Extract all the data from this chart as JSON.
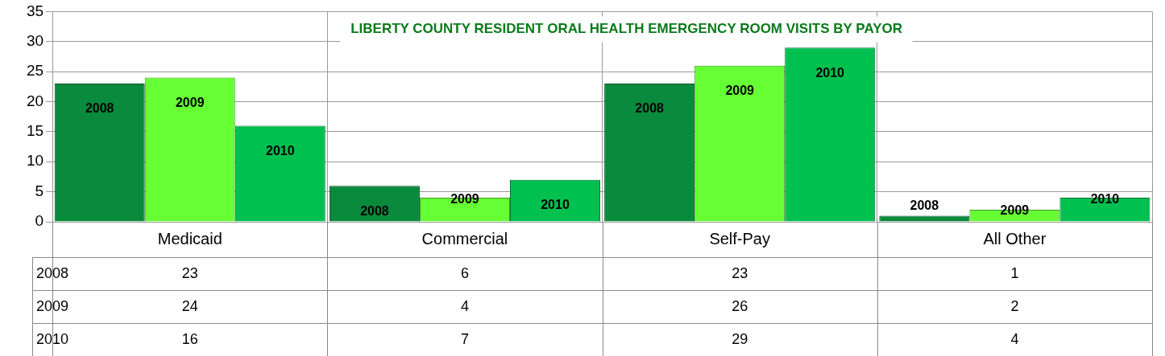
{
  "chart_data": {
    "type": "bar",
    "title": "LIBERTY COUNTY RESIDENT ORAL HEALTH EMERGENCY ROOM VISITS BY PAYOR",
    "categories": [
      "Medicaid",
      "Commercial",
      "Self-Pay",
      "All Other"
    ],
    "series": [
      {
        "name": "2008",
        "color": "#0a8a3c",
        "values": [
          23,
          6,
          23,
          1
        ]
      },
      {
        "name": "2009",
        "color": "#66ff33",
        "values": [
          24,
          4,
          26,
          2
        ]
      },
      {
        "name": "2010",
        "color": "#00c050",
        "values": [
          16,
          7,
          29,
          4
        ]
      }
    ],
    "ylim": [
      0,
      35
    ],
    "yticks": [
      0,
      5,
      10,
      15,
      20,
      25,
      30,
      35
    ],
    "grid": true,
    "data_labels": true
  }
}
